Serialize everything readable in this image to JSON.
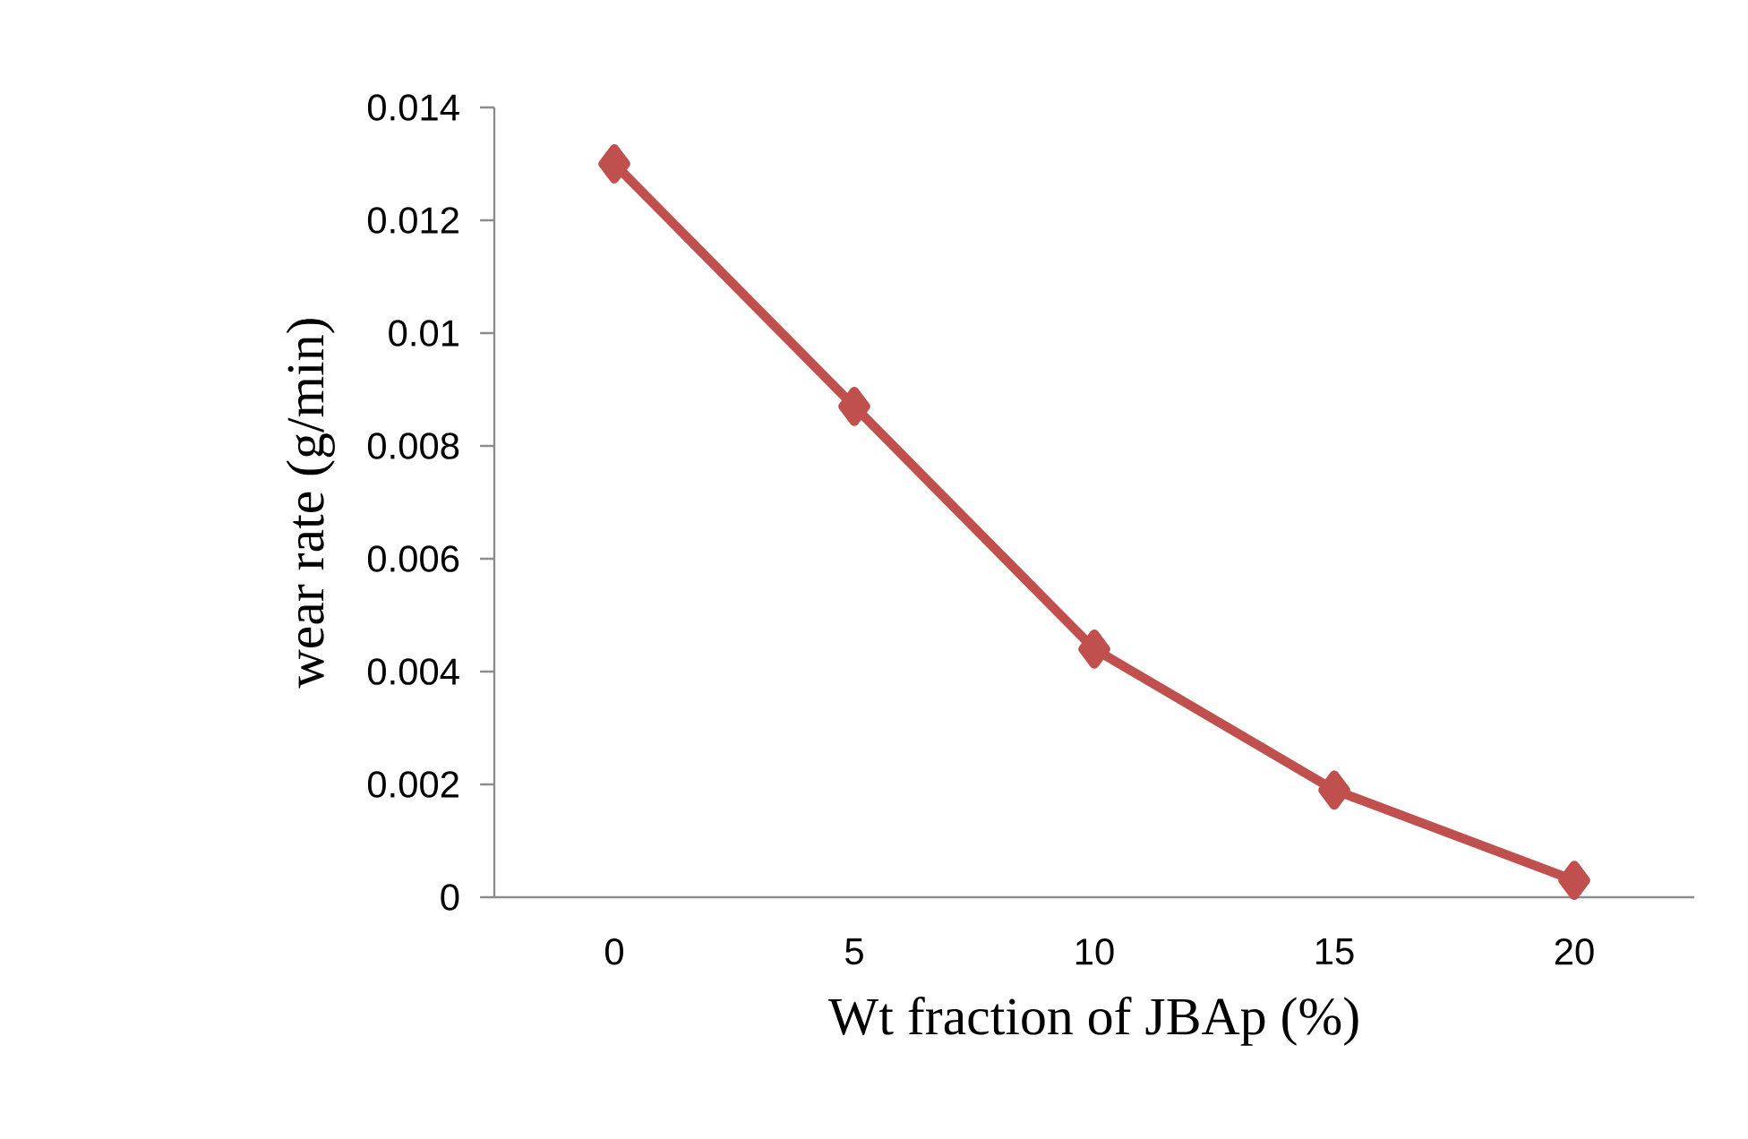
{
  "chart_data": {
    "type": "line",
    "xlabel": "Wt fraction of JBAp (%)",
    "ylabel": "wear rate (g/min)",
    "categories": [
      "0",
      "5",
      "10",
      "15",
      "20"
    ],
    "series": [
      {
        "color": "#c0504d",
        "values": [
          0.013,
          0.0087,
          0.0044,
          0.0019,
          0.0003
        ]
      }
    ],
    "ylim": [
      0,
      0.014
    ],
    "yticks": [
      0,
      0.002,
      0.004,
      0.006,
      0.008,
      0.01,
      0.012,
      0.014
    ],
    "marker": "diamond",
    "line_style": "solid",
    "grid": false
  }
}
